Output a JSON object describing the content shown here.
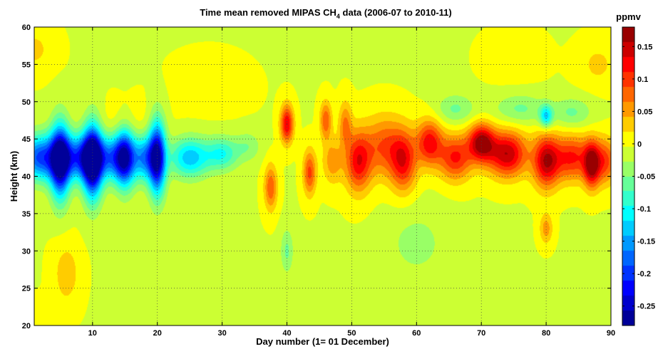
{
  "chart_data": {
    "type": "heatmap",
    "title": {
      "prefix": "Time mean removed MIPAS CH",
      "subscript": "4",
      "suffix": " data (2006-07 to 2010-11)"
    },
    "xlabel": "Day number (1= 01 December)",
    "ylabel": "Height (km)",
    "colorbar_label": "ppmv",
    "xlim": [
      1,
      90
    ],
    "ylim": [
      20,
      60
    ],
    "x_ticks": [
      10,
      20,
      30,
      40,
      50,
      60,
      70,
      80,
      90
    ],
    "y_ticks": [
      20,
      25,
      30,
      35,
      40,
      45,
      50,
      55,
      60
    ],
    "clim": [
      -0.28,
      0.18
    ],
    "colorbar_ticks": [
      {
        "value": 0.15,
        "label": "0.15"
      },
      {
        "value": 0.1,
        "label": "0.1"
      },
      {
        "value": 0.05,
        "label": "0.05"
      },
      {
        "value": 0,
        "label": "0"
      },
      {
        "value": -0.05,
        "label": "-0.05"
      },
      {
        "value": -0.1,
        "label": "-0.1"
      },
      {
        "value": -0.15,
        "label": "-0.15"
      },
      {
        "value": -0.2,
        "label": "-0.2"
      },
      {
        "value": -0.25,
        "label": "-0.25"
      }
    ],
    "colormap": "jet",
    "grid": "dotted",
    "background_value": -0.005,
    "features": [
      {
        "day": 1,
        "height": 57,
        "value": 0.03,
        "day_width": 3,
        "height_width": 3
      },
      {
        "day": 6,
        "height": 27,
        "value": 0.04,
        "day_width": 2,
        "height_width": 4
      },
      {
        "day": 3,
        "height": 22,
        "value": 0.01,
        "day_width": 3,
        "height_width": 2
      },
      {
        "day": 15,
        "height": 47,
        "value": 0.02,
        "day_width": 5,
        "height_width": 3
      },
      {
        "day": 28,
        "height": 52,
        "value": 0.01,
        "day_width": 6,
        "height_width": 4
      },
      {
        "day": 2,
        "height": 42.5,
        "value": -0.19,
        "day_width": 3,
        "height_width": 3
      },
      {
        "day": 5,
        "height": 42,
        "value": -0.24,
        "day_width": 1.5,
        "height_width": 5
      },
      {
        "day": 10,
        "height": 42,
        "value": -0.26,
        "day_width": 1.5,
        "height_width": 5
      },
      {
        "day": 8,
        "height": 42.5,
        "value": -0.18,
        "day_width": 3,
        "height_width": 3
      },
      {
        "day": 15,
        "height": 42.5,
        "value": -0.2,
        "day_width": 1.5,
        "height_width": 4
      },
      {
        "day": 13,
        "height": 42.5,
        "value": -0.15,
        "day_width": 2.5,
        "height_width": 3
      },
      {
        "day": 20,
        "height": 42.5,
        "value": -0.24,
        "day_width": 1.3,
        "height_width": 5
      },
      {
        "day": 18,
        "height": 42.5,
        "value": -0.15,
        "day_width": 2,
        "height_width": 3
      },
      {
        "day": 25,
        "height": 42.5,
        "value": -0.13,
        "day_width": 3,
        "height_width": 2.6
      },
      {
        "day": 30,
        "height": 43,
        "value": -0.09,
        "day_width": 2.5,
        "height_width": 2.2
      },
      {
        "day": 34,
        "height": 44,
        "value": -0.04,
        "day_width": 2,
        "height_width": 2
      },
      {
        "day": 37.5,
        "height": 38.5,
        "value": 0.09,
        "day_width": 1,
        "height_width": 3
      },
      {
        "day": 40,
        "height": 47,
        "value": 0.14,
        "day_width": 1,
        "height_width": 2.5
      },
      {
        "day": 43.5,
        "height": 40.5,
        "value": 0.1,
        "day_width": 1,
        "height_width": 3
      },
      {
        "day": 46,
        "height": 47.5,
        "value": 0.09,
        "day_width": 0.9,
        "height_width": 2.5
      },
      {
        "day": 47,
        "height": 42,
        "value": 0.06,
        "day_width": 1.5,
        "height_width": 3
      },
      {
        "day": 49,
        "height": 47,
        "value": 0.07,
        "day_width": 1,
        "height_width": 3
      },
      {
        "day": 51,
        "height": 42,
        "value": 0.13,
        "day_width": 2,
        "height_width": 4
      },
      {
        "day": 55,
        "height": 44,
        "value": 0.09,
        "day_width": 3,
        "height_width": 4
      },
      {
        "day": 58,
        "height": 42,
        "value": 0.12,
        "day_width": 2,
        "height_width": 4
      },
      {
        "day": 62,
        "height": 44.5,
        "value": 0.13,
        "day_width": 2,
        "height_width": 3
      },
      {
        "day": 66,
        "height": 42.5,
        "value": 0.12,
        "day_width": 2.5,
        "height_width": 3
      },
      {
        "day": 70,
        "height": 44.5,
        "value": 0.17,
        "day_width": 2,
        "height_width": 2.5
      },
      {
        "day": 74,
        "height": 43,
        "value": 0.16,
        "day_width": 3,
        "height_width": 3
      },
      {
        "day": 80,
        "height": 42,
        "value": 0.15,
        "day_width": 2,
        "height_width": 3.5
      },
      {
        "day": 84,
        "height": 42.5,
        "value": 0.12,
        "day_width": 3,
        "height_width": 3
      },
      {
        "day": 87,
        "height": 41.5,
        "value": 0.14,
        "day_width": 1.2,
        "height_width": 3
      },
      {
        "day": 89,
        "height": 42,
        "value": 0.1,
        "day_width": 2,
        "height_width": 3
      },
      {
        "day": 80,
        "height": 48,
        "value": -0.11,
        "day_width": 1,
        "height_width": 1.5
      },
      {
        "day": 76,
        "height": 49,
        "value": -0.05,
        "day_width": 4,
        "height_width": 2
      },
      {
        "day": 84,
        "height": 48.5,
        "value": -0.05,
        "day_width": 3,
        "height_width": 2
      },
      {
        "day": 66,
        "height": 49,
        "value": -0.05,
        "day_width": 3,
        "height_width": 2
      },
      {
        "day": 40,
        "height": 30,
        "value": -0.05,
        "day_width": 1,
        "height_width": 3
      },
      {
        "day": 80,
        "height": 33,
        "value": 0.06,
        "day_width": 1,
        "height_width": 2
      },
      {
        "day": 88,
        "height": 55,
        "value": 0.03,
        "day_width": 3,
        "height_width": 3
      },
      {
        "day": 75,
        "height": 56,
        "value": 0.02,
        "day_width": 4,
        "height_width": 3
      },
      {
        "day": 60,
        "height": 31,
        "value": -0.03,
        "day_width": 5,
        "height_width": 5
      }
    ]
  }
}
